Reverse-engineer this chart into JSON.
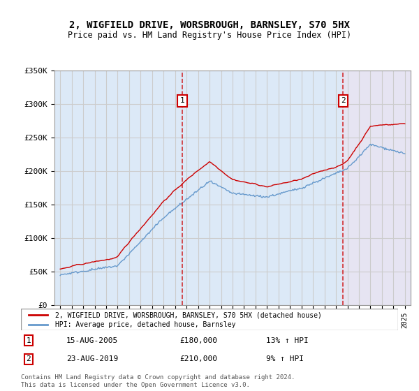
{
  "title": "2, WIGFIELD DRIVE, WORSBROUGH, BARNSLEY, S70 5HX",
  "subtitle": "Price paid vs. HM Land Registry's House Price Index (HPI)",
  "red_label": "2, WIGFIELD DRIVE, WORSBROUGH, BARNSLEY, S70 5HX (detached house)",
  "blue_label": "HPI: Average price, detached house, Barnsley",
  "annotation1_date": "15-AUG-2005",
  "annotation1_price": "£180,000",
  "annotation1_hpi": "13% ↑ HPI",
  "annotation2_date": "23-AUG-2019",
  "annotation2_price": "£210,000",
  "annotation2_hpi": "9% ↑ HPI",
  "footer": "Contains HM Land Registry data © Crown copyright and database right 2024.\nThis data is licensed under the Open Government Licence v3.0.",
  "ylim": [
    0,
    350000
  ],
  "yticks": [
    0,
    50000,
    100000,
    150000,
    200000,
    250000,
    300000,
    350000
  ],
  "ytick_labels": [
    "£0",
    "£50K",
    "£100K",
    "£150K",
    "£200K",
    "£250K",
    "£300K",
    "£350K"
  ],
  "xstart_year": 1995,
  "xend_year": 2025,
  "sale1_year": 2005.625,
  "sale1_price": 180000,
  "sale2_year": 2019.625,
  "sale2_price": 210000,
  "bg_color": "#dce9f7",
  "bg_color_right": "#f0e8f0",
  "red_color": "#cc0000",
  "blue_color": "#6699cc",
  "grid_color": "#cccccc",
  "dashed_line_color": "#cc0000"
}
